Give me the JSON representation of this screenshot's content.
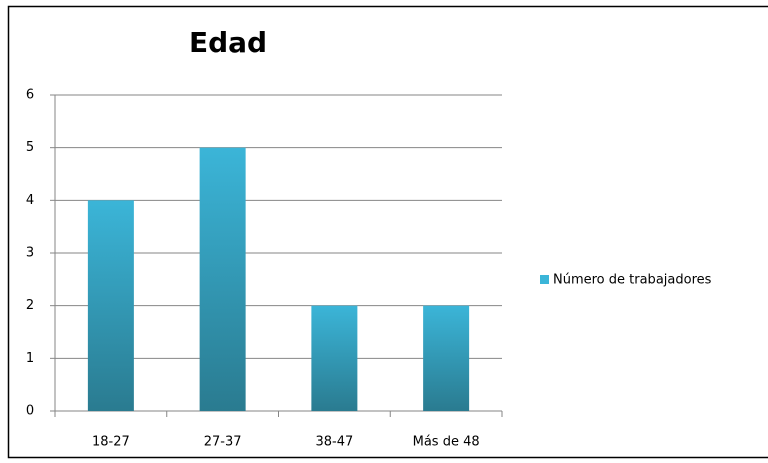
{
  "chart_data": {
    "type": "bar",
    "title": "Edad",
    "categories": [
      "18-27",
      "27-37",
      "38-47",
      "Más de 48"
    ],
    "series": [
      {
        "name": "Número de trabajadores",
        "color": "#3bb5d8",
        "values": [
          4,
          5,
          2,
          2
        ]
      }
    ],
    "ylim": [
      0,
      6
    ],
    "yticks": [
      0,
      1,
      2,
      3,
      4,
      5,
      6
    ],
    "grid": true,
    "legend": "right"
  }
}
